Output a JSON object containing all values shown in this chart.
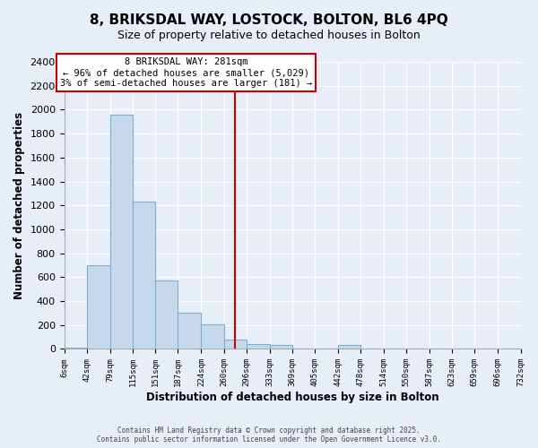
{
  "title": "8, BRIKSDAL WAY, LOSTOCK, BOLTON, BL6 4PQ",
  "subtitle": "Size of property relative to detached houses in Bolton",
  "xlabel": "Distribution of detached houses by size in Bolton",
  "ylabel": "Number of detached properties",
  "bar_color": "#c6d9ec",
  "bar_edge_color": "#7bafd4",
  "background_color": "#e8eef8",
  "plot_bg_color": "#e8eef8",
  "bins": [
    6,
    42,
    79,
    115,
    151,
    187,
    224,
    260,
    296,
    333,
    369,
    405,
    442,
    478,
    514,
    550,
    587,
    623,
    659,
    696,
    732
  ],
  "bin_labels": [
    "6sqm",
    "42sqm",
    "79sqm",
    "115sqm",
    "151sqm",
    "187sqm",
    "224sqm",
    "260sqm",
    "296sqm",
    "333sqm",
    "369sqm",
    "405sqm",
    "442sqm",
    "478sqm",
    "514sqm",
    "550sqm",
    "587sqm",
    "623sqm",
    "659sqm",
    "696sqm",
    "732sqm"
  ],
  "counts": [
    10,
    700,
    1960,
    1235,
    575,
    305,
    205,
    75,
    40,
    30,
    5,
    0,
    30,
    5,
    0,
    5,
    0,
    0,
    0,
    5
  ],
  "ylim": [
    0,
    2400
  ],
  "yticks": [
    0,
    200,
    400,
    600,
    800,
    1000,
    1200,
    1400,
    1600,
    1800,
    2000,
    2200,
    2400
  ],
  "property_line_x": 278,
  "property_line_color": "#cc0000",
  "annotation_title": "8 BRIKSDAL WAY: 281sqm",
  "annotation_line1": "← 96% of detached houses are smaller (5,029)",
  "annotation_line2": "3% of semi-detached houses are larger (181) →",
  "footer_line1": "Contains HM Land Registry data © Crown copyright and database right 2025.",
  "footer_line2": "Contains public sector information licensed under the Open Government Licence v3.0."
}
